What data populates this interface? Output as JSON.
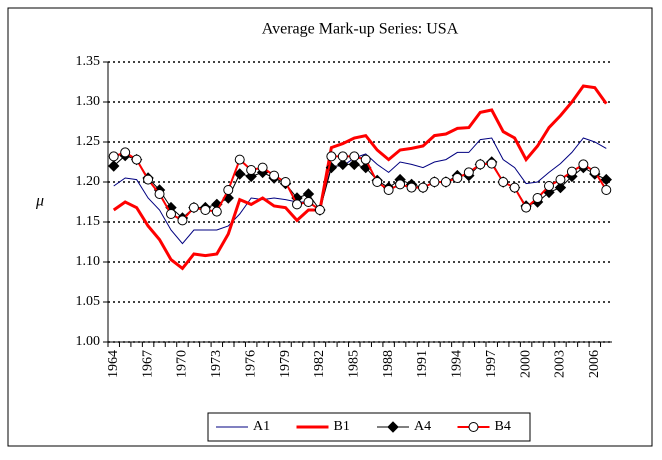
{
  "chart_data": {
    "type": "line",
    "title": "Average Mark-up Series: USA",
    "y_label": "μ",
    "categories": [
      "1964",
      null,
      null,
      "1967",
      null,
      null,
      "1970",
      null,
      null,
      "1973",
      null,
      null,
      "1976",
      null,
      null,
      "1979",
      null,
      null,
      "1982",
      null,
      null,
      "1985",
      null,
      null,
      "1988",
      null,
      null,
      "1991",
      null,
      null,
      "1994",
      null,
      null,
      "1997",
      null,
      null,
      "2000",
      null,
      null,
      "2003",
      null,
      null,
      "2006",
      null
    ],
    "series": [
      {
        "name": "A1",
        "color": "#000080",
        "width": 1,
        "marker": "none",
        "marker_fill": "none",
        "values": [
          1.195,
          1.205,
          1.203,
          1.18,
          1.165,
          1.14,
          1.123,
          1.14,
          1.14,
          1.14,
          1.145,
          1.16,
          1.18,
          1.178,
          1.18,
          1.178,
          1.175,
          1.175,
          1.165,
          1.22,
          1.22,
          1.23,
          1.235,
          1.222,
          1.212,
          1.225,
          1.222,
          1.218,
          1.225,
          1.228,
          1.237,
          1.237,
          1.253,
          1.255,
          1.228,
          1.218,
          1.198,
          1.2,
          1.212,
          1.223,
          1.237,
          1.255,
          1.25,
          1.242
        ]
      },
      {
        "name": "B1",
        "color": "#ff0000",
        "width": 3,
        "marker": "none",
        "marker_fill": "none",
        "values": [
          1.165,
          1.175,
          1.168,
          1.145,
          1.128,
          1.103,
          1.092,
          1.11,
          1.108,
          1.11,
          1.135,
          1.178,
          1.172,
          1.18,
          1.17,
          1.168,
          1.152,
          1.165,
          1.165,
          1.243,
          1.248,
          1.255,
          1.258,
          1.24,
          1.228,
          1.24,
          1.242,
          1.245,
          1.258,
          1.26,
          1.267,
          1.268,
          1.287,
          1.29,
          1.263,
          1.255,
          1.228,
          1.245,
          1.268,
          1.283,
          1.3,
          1.32,
          1.318,
          1.298
        ]
      },
      {
        "name": "A4",
        "color": "#000000",
        "width": 1,
        "marker": "diamond",
        "marker_fill": "#000000",
        "values": [
          1.22,
          1.233,
          1.228,
          1.205,
          1.19,
          1.168,
          1.155,
          1.168,
          1.168,
          1.172,
          1.18,
          1.21,
          1.207,
          1.212,
          1.205,
          1.198,
          1.18,
          1.185,
          1.165,
          1.218,
          1.222,
          1.222,
          1.218,
          1.202,
          1.193,
          1.203,
          1.197,
          1.193,
          1.2,
          1.2,
          1.208,
          1.208,
          1.222,
          1.225,
          1.2,
          1.193,
          1.17,
          1.175,
          1.187,
          1.193,
          1.207,
          1.218,
          1.21,
          1.203
        ]
      },
      {
        "name": "B4",
        "color": "#ff0000",
        "width": 2,
        "marker": "circle",
        "marker_fill": "#ffffff",
        "values": [
          1.232,
          1.237,
          1.228,
          1.203,
          1.185,
          1.16,
          1.152,
          1.168,
          1.165,
          1.163,
          1.19,
          1.228,
          1.215,
          1.218,
          1.208,
          1.2,
          1.172,
          1.175,
          1.165,
          1.232,
          1.232,
          1.232,
          1.228,
          1.2,
          1.19,
          1.197,
          1.193,
          1.193,
          1.2,
          1.2,
          1.205,
          1.212,
          1.222,
          1.223,
          1.2,
          1.193,
          1.168,
          1.18,
          1.195,
          1.203,
          1.213,
          1.222,
          1.213,
          1.19
        ]
      }
    ],
    "ylim": [
      1.0,
      1.35
    ],
    "yticks": [
      {
        "value": 1.0,
        "label": "1.00"
      },
      {
        "value": 1.05,
        "label": "1.05"
      },
      {
        "value": 1.1,
        "label": "1.10"
      },
      {
        "value": 1.15,
        "label": "1.15"
      },
      {
        "value": 1.2,
        "label": "1.20"
      },
      {
        "value": 1.25,
        "label": "1.25"
      },
      {
        "value": 1.3,
        "label": "1.30"
      },
      {
        "value": 1.35,
        "label": "1.35"
      }
    ],
    "grid": true,
    "legend": "bottom"
  }
}
